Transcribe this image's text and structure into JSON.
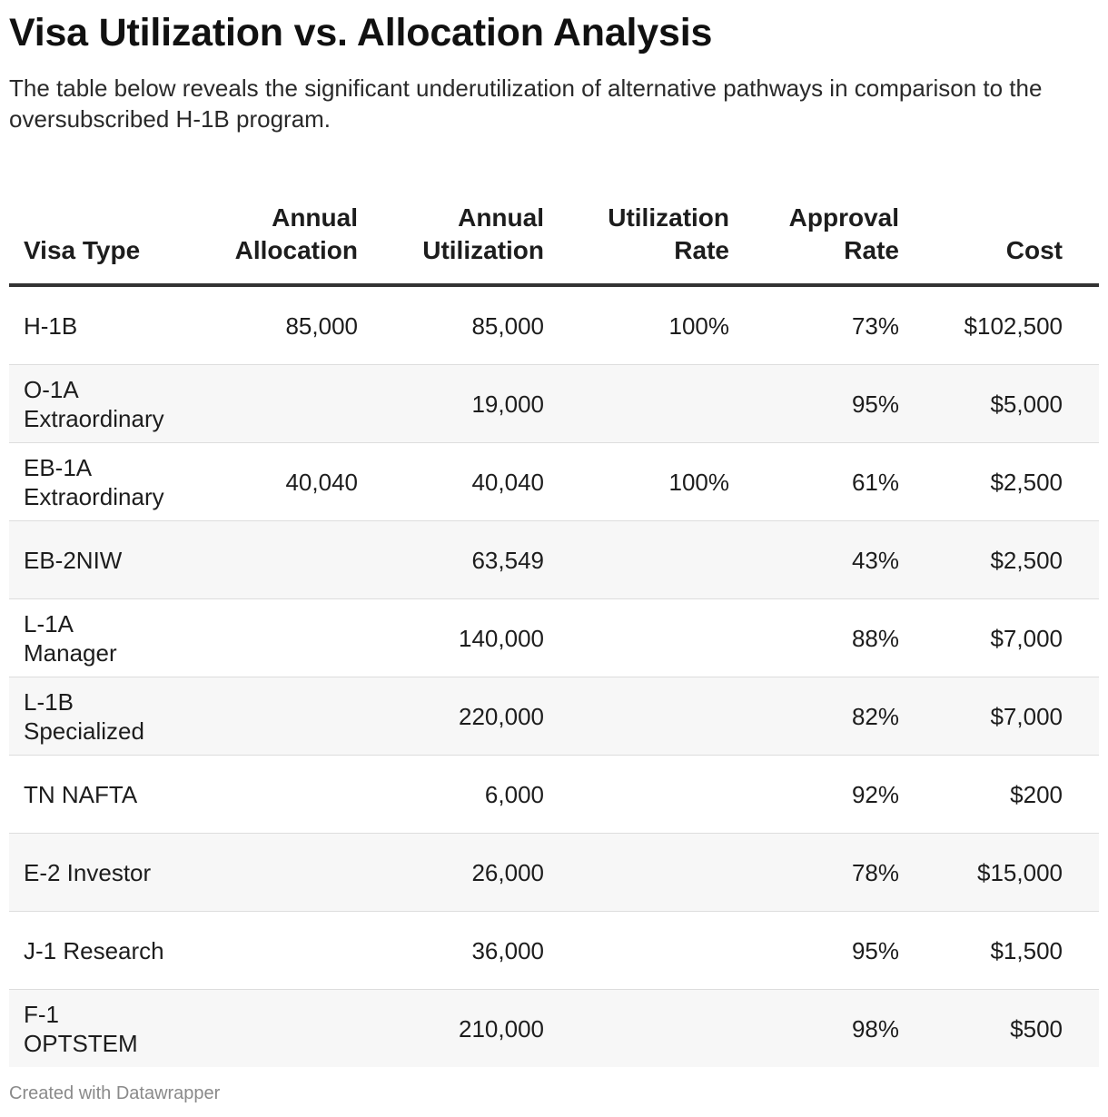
{
  "title": "Visa Utilization vs. Allocation Analysis",
  "subtitle": "The table below reveals the significant underutilization of alternative pathways in comparison to the oversubscribed H-1B program.",
  "footer": "Created with Datawrapper",
  "chart_data": {
    "type": "table",
    "title": "Visa Utilization vs. Allocation Analysis",
    "columns": [
      "Visa Type",
      "Annual Allocation",
      "Annual Utilization",
      "Utilization Rate",
      "Approval Rate",
      "Cost"
    ],
    "header_lines": [
      [
        "",
        "Visa Type"
      ],
      [
        "Annual",
        "Allocation"
      ],
      [
        "Annual",
        "Utilization"
      ],
      [
        "Utilization",
        "Rate"
      ],
      [
        "Approval",
        "Rate"
      ],
      [
        "",
        "Cost"
      ]
    ],
    "rows": [
      {
        "type_lines": [
          "H-1B"
        ],
        "allocation": "85,000",
        "utilization": "85,000",
        "utilization_rate": "100%",
        "approval_rate": "73%",
        "cost": "$102,500"
      },
      {
        "type_lines": [
          "O-1A",
          "Extraordinary"
        ],
        "allocation": "",
        "utilization": "19,000",
        "utilization_rate": "",
        "approval_rate": "95%",
        "cost": "$5,000"
      },
      {
        "type_lines": [
          "EB-1A",
          "Extraordinary"
        ],
        "allocation": "40,040",
        "utilization": "40,040",
        "utilization_rate": "100%",
        "approval_rate": "61%",
        "cost": "$2,500"
      },
      {
        "type_lines": [
          "EB-2NIW"
        ],
        "allocation": "",
        "utilization": "63,549",
        "utilization_rate": "",
        "approval_rate": "43%",
        "cost": "$2,500"
      },
      {
        "type_lines": [
          "L-1A",
          "Manager"
        ],
        "allocation": "",
        "utilization": "140,000",
        "utilization_rate": "",
        "approval_rate": "88%",
        "cost": "$7,000"
      },
      {
        "type_lines": [
          "L-1B",
          "Specialized"
        ],
        "allocation": "",
        "utilization": "220,000",
        "utilization_rate": "",
        "approval_rate": "82%",
        "cost": "$7,000"
      },
      {
        "type_lines": [
          "TN NAFTA"
        ],
        "allocation": "",
        "utilization": "6,000",
        "utilization_rate": "",
        "approval_rate": "92%",
        "cost": "$200"
      },
      {
        "type_lines": [
          "E-2 Investor"
        ],
        "allocation": "",
        "utilization": "26,000",
        "utilization_rate": "",
        "approval_rate": "78%",
        "cost": "$15,000"
      },
      {
        "type_lines": [
          "J-1 Research"
        ],
        "allocation": "",
        "utilization": "36,000",
        "utilization_rate": "",
        "approval_rate": "95%",
        "cost": "$1,500"
      },
      {
        "type_lines": [
          "F-1",
          "OPTSTEM"
        ],
        "allocation": "",
        "utilization": "210,000",
        "utilization_rate": "",
        "approval_rate": "98%",
        "cost": "$500"
      }
    ],
    "stripe_color": "#f7f7f7",
    "header_rule_color": "#333333",
    "row_rule_color": "#dddddd"
  }
}
